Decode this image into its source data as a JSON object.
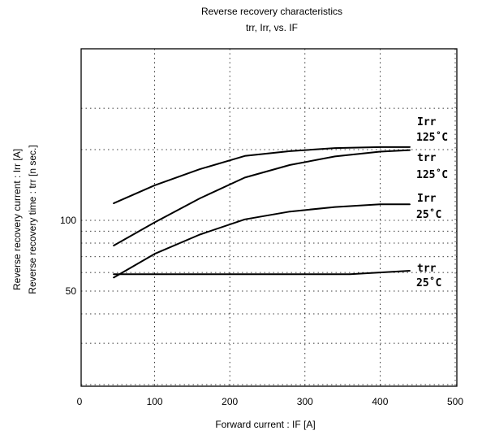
{
  "chart_data": {
    "type": "line",
    "title": "Reverse recovery characteristics",
    "subtitle": "trr,  Irr,  vs.   IF",
    "xlabel": "Forward  current  :  IF [A]",
    "ylabel_1": "Reverse  recovery  current  :  Irr [A]",
    "ylabel_2": "Reverse  recovery  time  :  trr [n sec.]",
    "xlim": [
      0,
      550
    ],
    "xticks": [
      0,
      100,
      200,
      300,
      400,
      500
    ],
    "xtick_labels": [
      "0",
      "100",
      "200",
      "300",
      "400",
      "500"
    ],
    "yscale": "log",
    "ylim": [
      15,
      400
    ],
    "yticks": [
      50,
      100
    ],
    "ytick_labels": [
      "50",
      "100"
    ],
    "grid": true,
    "series": [
      {
        "name": "Irr 125°C",
        "label_line1": "Irr",
        "label_line2": "125˚C",
        "x": [
          45,
          100,
          160,
          220,
          280,
          340,
          400,
          440
        ],
        "y": [
          118,
          141,
          165,
          188,
          197,
          203,
          205,
          205
        ]
      },
      {
        "name": "trr 125°C",
        "label_line1": "trr",
        "label_line2": "125˚C",
        "x": [
          45,
          100,
          160,
          220,
          280,
          340,
          400,
          440
        ],
        "y": [
          78,
          98,
          124,
          152,
          172,
          187,
          196,
          199
        ]
      },
      {
        "name": "Irr 25°C",
        "label_line1": "Irr",
        "label_line2": "25˚C",
        "x": [
          45,
          100,
          160,
          220,
          280,
          340,
          400,
          440
        ],
        "y": [
          57,
          72,
          87,
          101,
          109,
          114,
          117,
          117
        ]
      },
      {
        "name": "trr 25°C",
        "label_line1": "trr",
        "label_line2": "25˚C",
        "x": [
          45,
          100,
          200,
          300,
          360,
          400,
          440
        ],
        "y": [
          59,
          59,
          59,
          59,
          59,
          60,
          61
        ]
      }
    ]
  }
}
